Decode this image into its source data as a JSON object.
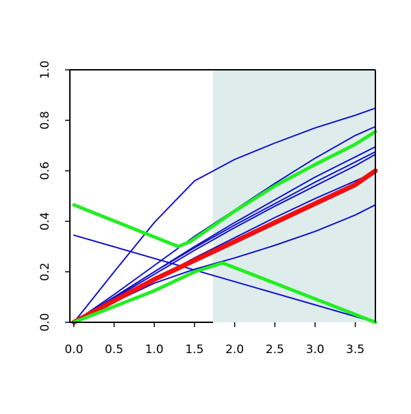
{
  "chart_data": {
    "type": "line",
    "title": "",
    "xlabel": "",
    "ylabel": "",
    "xlim": [
      -0.05,
      3.75
    ],
    "ylim": [
      0,
      1
    ],
    "grid": false,
    "x_ticks": [
      0.0,
      0.5,
      1.0,
      1.5,
      2.0,
      2.5,
      3.0,
      3.5
    ],
    "x_tick_labels": [
      "0.0",
      "0.5",
      "1.0",
      "1.5",
      "2.0",
      "2.5",
      "3.0",
      "3.5"
    ],
    "y_ticks": [
      0.0,
      0.2,
      0.4,
      0.6,
      0.8,
      1.0
    ],
    "y_tick_labels": [
      "0.0",
      "0.2",
      "0.4",
      "0.6",
      "0.8",
      "1.0"
    ],
    "shaded_region": {
      "x": [
        1.73,
        3.75
      ],
      "color": "#deecec"
    },
    "colors": {
      "blue": "#1010c8",
      "red": "#f01010",
      "green": "#22ee22",
      "shade": "#deecec"
    },
    "series": [
      {
        "color": "blue",
        "width": 2,
        "x": [
          0,
          0.5,
          1.0,
          1.5,
          2.0,
          2.5,
          3.0,
          3.5,
          3.75
        ],
        "y": [
          0,
          0.11,
          0.225,
          0.34,
          0.445,
          0.55,
          0.65,
          0.74,
          0.775
        ]
      },
      {
        "color": "blue",
        "width": 2,
        "x": [
          0,
          0.5,
          1.0,
          1.5,
          2.0,
          2.5,
          3.0,
          3.5,
          3.75
        ],
        "y": [
          0,
          0.085,
          0.17,
          0.255,
          0.335,
          0.415,
          0.49,
          0.56,
          0.595
        ]
      },
      {
        "color": "blue",
        "width": 2,
        "x": [
          0,
          0.5,
          1.0,
          1.5,
          2.0,
          2.5,
          3.0,
          3.5,
          3.75
        ],
        "y": [
          0,
          0.2,
          0.395,
          0.56,
          0.645,
          0.71,
          0.77,
          0.82,
          0.848
        ]
      },
      {
        "color": "blue",
        "width": 2,
        "x": [
          0,
          0.5,
          1.0,
          1.5,
          2.0,
          2.5,
          3.0,
          3.5,
          3.75
        ],
        "y": [
          0,
          0.095,
          0.19,
          0.285,
          0.375,
          0.46,
          0.54,
          0.62,
          0.665
        ]
      },
      {
        "color": "blue",
        "width": 2,
        "x": [
          0,
          0.5,
          1.0,
          1.5,
          2.0,
          2.5,
          3.0,
          3.5,
          3.75
        ],
        "y": [
          0,
          0.1,
          0.2,
          0.3,
          0.395,
          0.485,
          0.575,
          0.655,
          0.695
        ]
      },
      {
        "color": "blue",
        "width": 2,
        "x": [
          0,
          0.5,
          1.0,
          1.5,
          2.0,
          2.5,
          3.0,
          3.5,
          3.75
        ],
        "y": [
          0,
          0.1,
          0.2,
          0.295,
          0.385,
          0.47,
          0.555,
          0.635,
          0.675
        ]
      },
      {
        "color": "blue",
        "width": 2,
        "x": [
          0,
          0.5,
          1.0,
          1.5,
          2.0,
          2.5,
          3.0,
          3.5,
          3.75
        ],
        "y": [
          0,
          0.08,
          0.155,
          0.21,
          0.255,
          0.305,
          0.36,
          0.425,
          0.465
        ]
      },
      {
        "color": "blue",
        "width": 2,
        "x": [
          0,
          3.75
        ],
        "y": [
          0.345,
          0.0
        ]
      },
      {
        "color": "red",
        "width": 7,
        "x": [
          0,
          0.5,
          1.0,
          1.5,
          2.0,
          2.5,
          3.0,
          3.5,
          3.75
        ],
        "y": [
          0,
          0.085,
          0.17,
          0.245,
          0.32,
          0.395,
          0.47,
          0.545,
          0.6
        ]
      },
      {
        "color": "green",
        "width": 5,
        "x": [
          0,
          1.3,
          1.45,
          2.0,
          2.5,
          3.0,
          3.5,
          3.75
        ],
        "y": [
          0.465,
          0.3,
          0.32,
          0.44,
          0.54,
          0.625,
          0.705,
          0.755
        ]
      },
      {
        "color": "green",
        "width": 5,
        "x": [
          0,
          1.0,
          1.5,
          1.85,
          3.75
        ],
        "y": [
          0,
          0.125,
          0.2,
          0.235,
          0.0
        ]
      }
    ]
  }
}
